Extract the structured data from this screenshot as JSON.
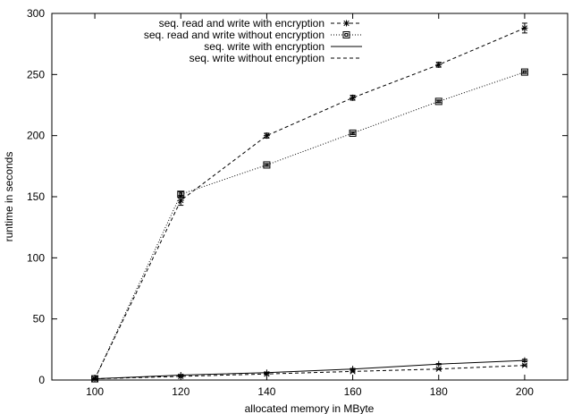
{
  "chart_data": {
    "type": "line",
    "title": "",
    "xlabel": "allocated memory in MByte",
    "ylabel": "runtime in seconds",
    "xlim": [
      90,
      210
    ],
    "ylim": [
      0,
      300
    ],
    "xticks": [
      100,
      120,
      140,
      160,
      180,
      200
    ],
    "yticks": [
      0,
      50,
      100,
      150,
      200,
      250,
      300
    ],
    "grid": false,
    "legend_position": "top-right",
    "x": [
      100,
      120,
      140,
      160,
      180,
      200
    ],
    "series": [
      {
        "name": "seq. read and write with encryption",
        "values": [
          1,
          147,
          200,
          231,
          258,
          288
        ],
        "errors": [
          0.5,
          4,
          2,
          2,
          2,
          4
        ],
        "line_style": "dashed",
        "marker": "star",
        "color": "#000000"
      },
      {
        "name": "seq. read and write without encryption",
        "values": [
          1,
          152,
          176,
          202,
          228,
          252
        ],
        "errors": [
          0.5,
          2,
          1,
          1,
          1,
          1
        ],
        "line_style": "dotted",
        "marker": "box",
        "color": "#000000"
      },
      {
        "name": "seq. write with encryption",
        "values": [
          1,
          4,
          6,
          9,
          13,
          16
        ],
        "errors": [
          0.5,
          0.5,
          0.5,
          0.5,
          0.5,
          1
        ],
        "line_style": "solid",
        "marker": "plus",
        "color": "#000000"
      },
      {
        "name": "seq. write without encryption",
        "values": [
          1,
          3,
          5,
          7,
          9,
          12
        ],
        "errors": [
          0.5,
          0.5,
          0.5,
          0.5,
          0.5,
          0.5
        ],
        "line_style": "dashed",
        "marker": "cross",
        "color": "#000000"
      }
    ]
  }
}
